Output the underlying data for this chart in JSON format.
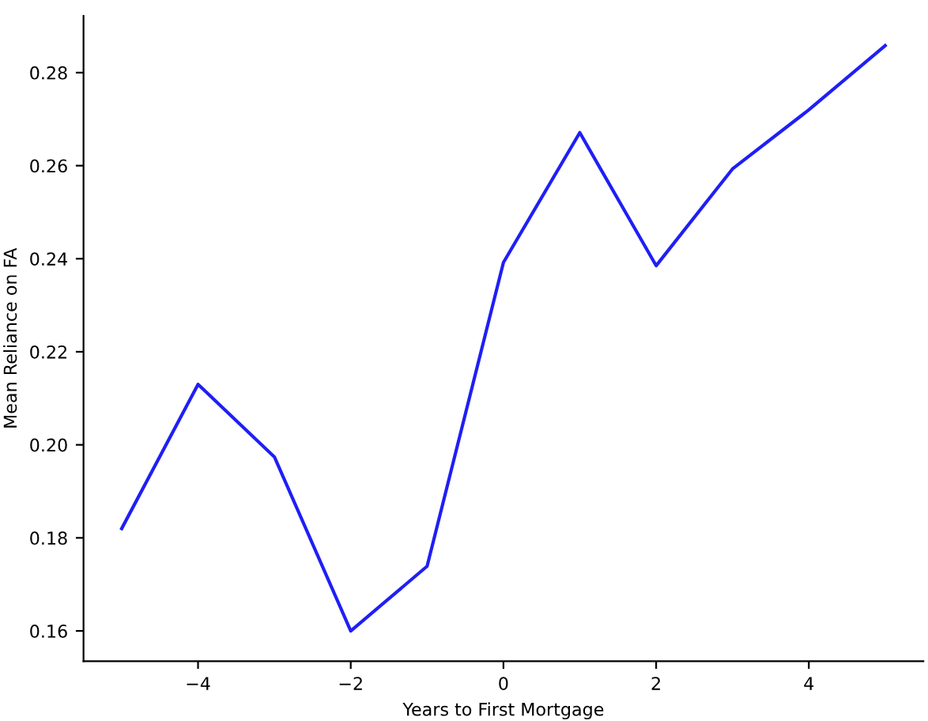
{
  "chart_data": {
    "type": "line",
    "xlabel": "Years to First Mortgage",
    "ylabel": "Mean Reliance on FA",
    "x": [
      -5,
      -4,
      -3,
      -2,
      -1,
      0,
      1,
      2,
      3,
      4,
      5
    ],
    "series": [
      {
        "color": "#1f1ff5",
        "values": [
          0.182,
          0.213,
          0.1974,
          0.16,
          0.1739,
          0.2392,
          0.2671,
          0.2385,
          0.2593,
          0.272,
          0.2858
        ]
      }
    ],
    "xlim": [
      -5.5,
      5.5
    ],
    "ylim": [
      0.1535,
      0.2922
    ],
    "xticks": [
      {
        "value": -4,
        "label": "−4"
      },
      {
        "value": -2,
        "label": "−2"
      },
      0,
      2,
      4
    ],
    "yticks": [
      {
        "value": 0.16,
        "label": "0.16"
      },
      {
        "value": 0.18,
        "label": "0.18"
      },
      {
        "value": 0.2,
        "label": "0.20"
      },
      {
        "value": 0.22,
        "label": "0.22"
      },
      {
        "value": 0.24,
        "label": "0.24"
      },
      {
        "value": 0.26,
        "label": "0.26"
      },
      {
        "value": 0.28,
        "label": "0.28"
      }
    ],
    "grid": false
  }
}
